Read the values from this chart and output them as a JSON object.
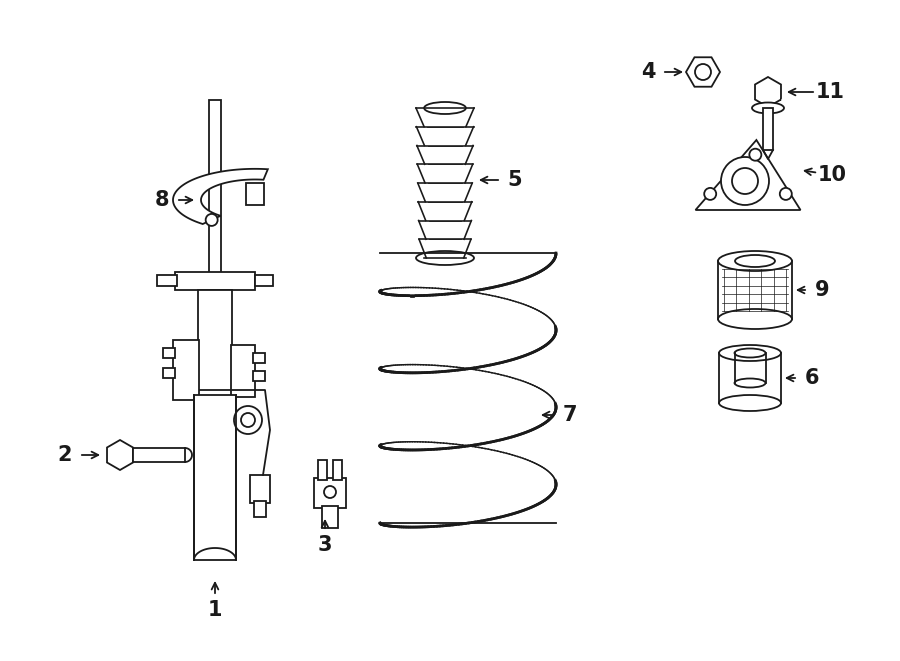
{
  "bg_color": "#ffffff",
  "line_color": "#1a1a1a",
  "fig_width": 9.0,
  "fig_height": 6.61,
  "dpi": 100
}
